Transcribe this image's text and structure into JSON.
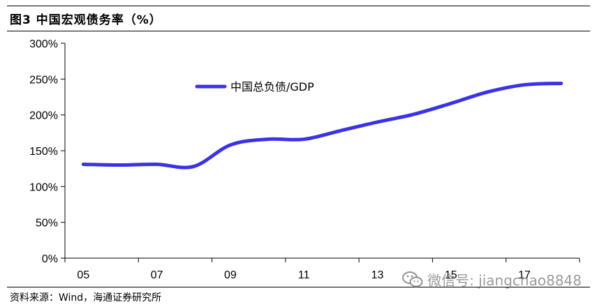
{
  "header": {
    "title": "图3  中国宏观债务率（%）"
  },
  "footer": {
    "source": "资料来源：Wind，海通证券研究所"
  },
  "watermark": {
    "text": "微信号: jiangchao8848",
    "icon": "wechat-icon"
  },
  "chart_data": {
    "type": "line",
    "title": "",
    "xlabel": "",
    "ylabel": "",
    "x_tick_labels": [
      "05",
      "07",
      "09",
      "11",
      "13",
      "15",
      "17"
    ],
    "x": [
      2005,
      2006,
      2007,
      2008,
      2009,
      2010,
      2011,
      2012,
      2013,
      2014,
      2015,
      2016,
      2017,
      2018
    ],
    "series": [
      {
        "name": "中国总负债/GDP",
        "color": "#3a33e6",
        "values": [
          131,
          130,
          131,
          128,
          158,
          166,
          166,
          178,
          190,
          201,
          216,
          232,
          242,
          244
        ]
      }
    ],
    "ylim": [
      0,
      300
    ],
    "y_ticks": [
      0,
      50,
      100,
      150,
      200,
      250,
      300
    ],
    "y_tick_labels": [
      "0%",
      "50%",
      "100%",
      "150%",
      "200%",
      "250%",
      "300%"
    ],
    "grid": false,
    "legend_position": "top-center"
  }
}
